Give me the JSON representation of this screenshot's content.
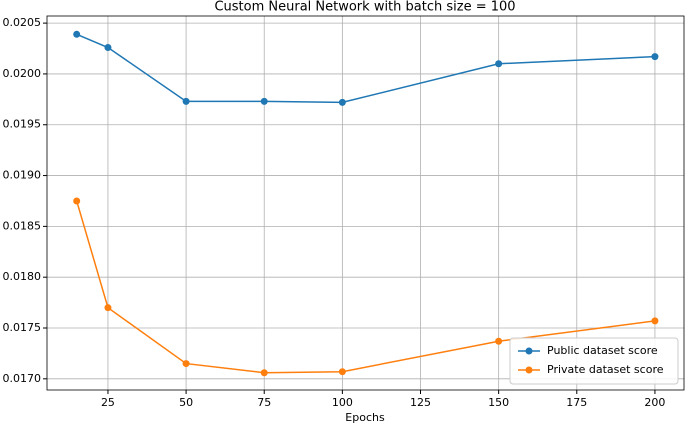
{
  "chart_data": {
    "type": "line",
    "title": "Custom Neural Network with batch size = 100",
    "xlabel": "Epochs",
    "x": [
      15,
      25,
      50,
      75,
      100,
      150,
      200
    ],
    "series": [
      {
        "name": "Public dataset score",
        "color": "#1f77b4",
        "values": [
          0.02039,
          0.02026,
          0.01973,
          0.01973,
          0.01972,
          0.0201,
          0.02017
        ]
      },
      {
        "name": "Private dataset score",
        "color": "#ff7f0e",
        "values": [
          0.01875,
          0.0177,
          0.01715,
          0.01706,
          0.01707,
          0.01737,
          0.01757
        ]
      }
    ],
    "xlim": [
      5.5,
      209.3
    ],
    "xticks": [
      25,
      50,
      75,
      100,
      125,
      150,
      175,
      200
    ],
    "ylim": [
      0.01689,
      0.02057
    ],
    "yticks": [
      {
        "value": 0.017,
        "label": "0.0170"
      },
      {
        "value": 0.0175,
        "label": "0.0175"
      },
      {
        "value": 0.018,
        "label": "0.0180"
      },
      {
        "value": 0.0185,
        "label": "0.0185"
      },
      {
        "value": 0.019,
        "label": "0.0190"
      },
      {
        "value": 0.0195,
        "label": "0.0195"
      },
      {
        "value": 0.02,
        "label": "0.0200"
      },
      {
        "value": 0.0205,
        "label": "0.0205"
      }
    ],
    "grid": true,
    "legend": "lower right"
  }
}
